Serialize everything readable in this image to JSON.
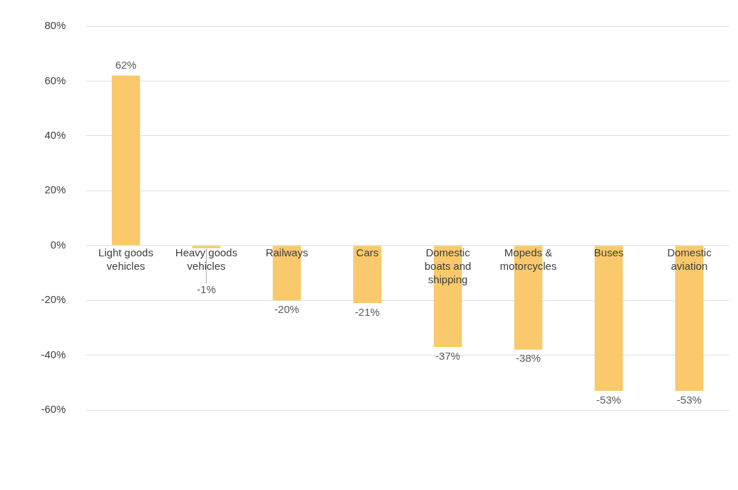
{
  "chart_data": {
    "type": "bar",
    "categories": [
      "Light goods vehicles",
      "Heavy goods vehicles",
      "Railways",
      "Cars",
      "Domestic boats and shipping",
      "Mopeds & motorcycles",
      "Buses",
      "Domestic aviation"
    ],
    "values": [
      62,
      -1,
      -20,
      -21,
      -37,
      -38,
      -53,
      -53
    ],
    "value_labels": [
      "62%",
      "-1%",
      "-20%",
      "-21%",
      "-37%",
      "-38%",
      "-53%",
      "-53%"
    ],
    "color": "#f9c96b",
    "ylim": [
      -60,
      80
    ],
    "yticks": [
      {
        "value": -60,
        "label": "-60%"
      },
      {
        "value": -40,
        "label": "-40%"
      },
      {
        "value": -20,
        "label": "-20%"
      },
      {
        "value": 0,
        "label": "0%"
      },
      {
        "value": 20,
        "label": "20%"
      },
      {
        "value": 40,
        "label": "40%"
      },
      {
        "value": 60,
        "label": "60%"
      },
      {
        "value": 80,
        "label": "80%"
      }
    ],
    "grid": "y",
    "legend": false
  }
}
